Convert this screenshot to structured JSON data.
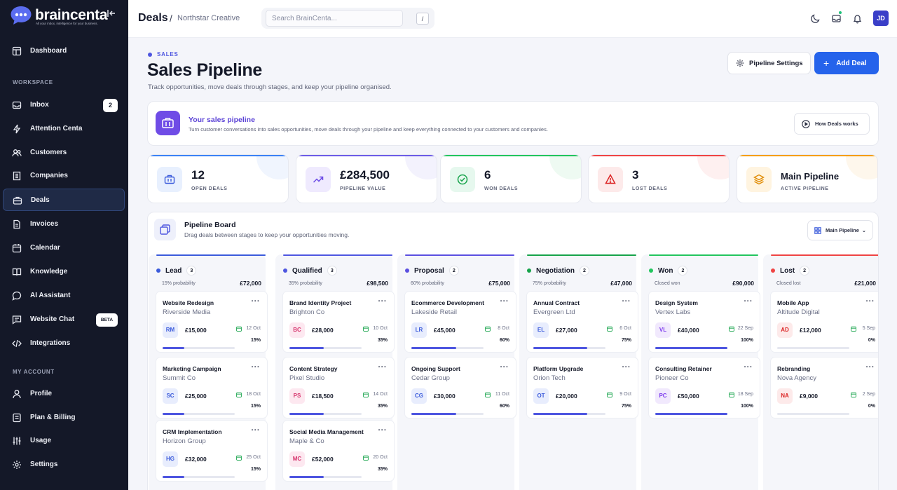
{
  "brand": {
    "name": "braincenta",
    "tagline": "All your inbox, intelligence for your business."
  },
  "sidebar": {
    "dashboard": "Dashboard",
    "workspace_label": "WORKSPACE",
    "items": [
      {
        "label": "Inbox",
        "badge": "2"
      },
      {
        "label": "Attention Centa"
      },
      {
        "label": "Customers"
      },
      {
        "label": "Companies"
      },
      {
        "label": "Deals"
      },
      {
        "label": "Invoices"
      },
      {
        "label": "Calendar"
      },
      {
        "label": "Knowledge"
      },
      {
        "label": "AI Assistant"
      },
      {
        "label": "Website Chat",
        "badge": "BETA"
      },
      {
        "label": "Integrations"
      }
    ],
    "account_label": "MY ACCOUNT",
    "account_items": [
      {
        "label": "Profile"
      },
      {
        "label": "Plan & Billing"
      },
      {
        "label": "Usage"
      },
      {
        "label": "Settings"
      }
    ],
    "active": "Deals"
  },
  "topbar": {
    "title": "Deals",
    "separator": "/",
    "workspace": "Northstar Creative",
    "search_placeholder": "Search BrainCenta...",
    "shortcut": "/",
    "avatar": "JD"
  },
  "page": {
    "eyebrow": "SALES",
    "title": "Sales Pipeline",
    "subtitle": "Track opportunities, move deals through stages, and keep your pipeline organised.",
    "settings_button": "Pipeline Settings",
    "add_button": "Add Deal"
  },
  "banner": {
    "title": "Your sales pipeline",
    "subtitle": "Turn customer conversations into sales opportunities, move deals through your pipeline and keep everything connected to your customers and companies.",
    "button": "How Deals works"
  },
  "stats": [
    {
      "value": "12",
      "label": "OPEN DEALS",
      "color": "#3b82f6"
    },
    {
      "value": "£284,500",
      "label": "PIPELINE VALUE",
      "color": "#6c5ce7"
    },
    {
      "value": "6",
      "label": "WON DEALS",
      "color": "#22c55e"
    },
    {
      "value": "3",
      "label": "LOST DEALS",
      "color": "#ef4444"
    },
    {
      "value": "Main Pipeline",
      "label": "ACTIVE PIPELINE",
      "color": "#f59e0b"
    }
  ],
  "board": {
    "title": "Pipeline Board",
    "subtitle": "Drag deals between stages to keep your opportunities moving.",
    "selector": "Main Pipeline",
    "columns": [
      {
        "name": "Lead",
        "count": "3",
        "probability": "15% probability",
        "total": "£72,000",
        "color": "#3b5bdb",
        "cards": [
          {
            "title": "Website Redesign",
            "company": "Riverside Media",
            "initials": "RM",
            "amount": "£15,000",
            "date": "12 Oct",
            "percent": "15%",
            "progress": 0.3
          },
          {
            "title": "Marketing Campaign",
            "company": "Summit Co",
            "initials": "SC",
            "amount": "£25,000",
            "date": "18 Oct",
            "percent": "15%",
            "progress": 0.3
          },
          {
            "title": "CRM Implementation",
            "company": "Horizon Group",
            "initials": "HG",
            "amount": "£32,000",
            "date": "25 Oct",
            "percent": "15%",
            "progress": 0.3
          }
        ]
      },
      {
        "name": "Qualified",
        "count": "3",
        "probability": "35% probability",
        "total": "£98,500",
        "color": "#4e56e0",
        "cards": [
          {
            "title": "Brand Identity Project",
            "company": "Brighton Co",
            "initials": "BC",
            "amount": "£28,000",
            "date": "10 Oct",
            "percent": "35%",
            "progress": 0.48
          },
          {
            "title": "Content Strategy",
            "company": "Pixel Studio",
            "initials": "PS",
            "amount": "£18,500",
            "date": "14 Oct",
            "percent": "35%",
            "progress": 0.48
          },
          {
            "title": "Social Media Management",
            "company": "Maple & Co",
            "initials": "MC",
            "amount": "£52,000",
            "date": "20 Oct",
            "percent": "35%",
            "progress": 0.48
          }
        ]
      },
      {
        "name": "Proposal",
        "count": "2",
        "probability": "60% probability",
        "total": "£75,000",
        "color": "#5b4fe0",
        "cards": [
          {
            "title": "Ecommerce Development",
            "company": "Lakeside Retail",
            "initials": "LR",
            "amount": "£45,000",
            "date": "8 Oct",
            "percent": "60%",
            "progress": 0.62
          },
          {
            "title": "Ongoing Support",
            "company": "Cedar Group",
            "initials": "CG",
            "amount": "£30,000",
            "date": "11 Oct",
            "percent": "60%",
            "progress": 0.62
          }
        ]
      },
      {
        "name": "Negotiation",
        "count": "2",
        "probability": "75% probability",
        "total": "£47,000",
        "color": "#16a34a",
        "cards": [
          {
            "title": "Annual Contract",
            "company": "Evergreen Ltd",
            "initials": "EL",
            "amount": "£27,000",
            "date": "6 Oct",
            "percent": "75%",
            "progress": 0.75
          },
          {
            "title": "Platform Upgrade",
            "company": "Orion Tech",
            "initials": "OT",
            "amount": "£20,000",
            "date": "9 Oct",
            "percent": "75%",
            "progress": 0.75
          }
        ]
      },
      {
        "name": "Won",
        "count": "2",
        "probability": "Closed won",
        "total": "£90,000",
        "color": "#22c55e",
        "cards": [
          {
            "title": "Design System",
            "company": "Vertex Labs",
            "initials": "VL",
            "amount": "£40,000",
            "date": "22 Sep",
            "percent": "100%",
            "progress": 1.0
          },
          {
            "title": "Consulting Retainer",
            "company": "Pioneer Co",
            "initials": "PC",
            "amount": "£50,000",
            "date": "18 Sep",
            "percent": "100%",
            "progress": 1.0
          }
        ]
      },
      {
        "name": "Lost",
        "count": "2",
        "probability": "Closed lost",
        "total": "£21,000",
        "color": "#ef4444",
        "cards": [
          {
            "title": "Mobile App",
            "company": "Altitude Digital",
            "initials": "AD",
            "amount": "£12,000",
            "date": "5 Sep",
            "percent": "0%",
            "progress": 0
          },
          {
            "title": "Rebranding",
            "company": "Nova Agency",
            "initials": "NA",
            "amount": "£9,000",
            "date": "2 Sep",
            "percent": "0%",
            "progress": 0
          }
        ]
      }
    ]
  }
}
